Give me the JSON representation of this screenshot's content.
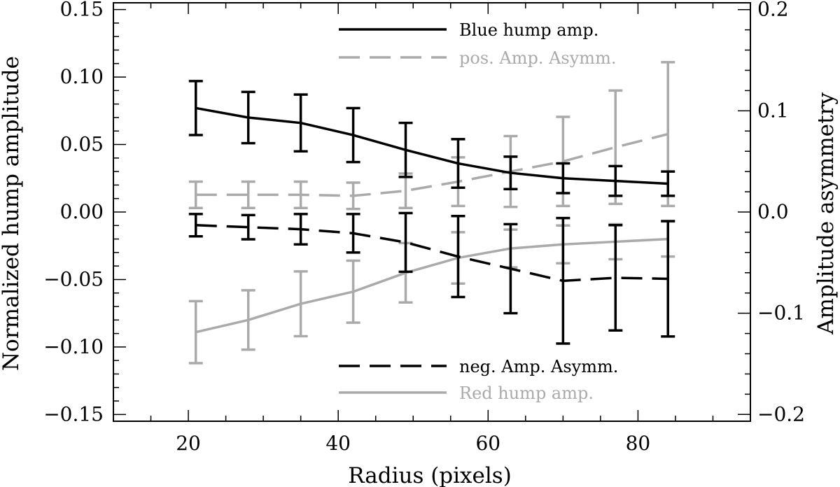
{
  "chart_data": {
    "type": "line",
    "xlabel": "Radius (pixels)",
    "ylabel_left": "Normalized hump amplitude",
    "ylabel_right": "Amplitude asymmetry",
    "xlim": [
      10,
      95
    ],
    "ylim_left": [
      -0.155,
      0.155
    ],
    "ylim_right": [
      -0.2067,
      0.2067
    ],
    "x_ticks": [
      20,
      40,
      60,
      80
    ],
    "x_tick_labels": [
      "20",
      "40",
      "60",
      "80"
    ],
    "y_left_ticks": [
      0.15,
      0.1,
      0.05,
      0.0,
      -0.05,
      -0.1,
      -0.15
    ],
    "y_left_tick_labels": [
      "0.15",
      "0.10",
      "0.05",
      "0.00",
      "−0.05",
      "−0.10",
      "−0.15"
    ],
    "y_right_ticks": [
      0.2,
      0.1,
      0.0,
      -0.1,
      -0.2
    ],
    "y_right_tick_labels": [
      "0.2",
      "0.1",
      "0.0",
      "−0.1",
      "−0.2"
    ],
    "x": [
      21,
      28,
      35,
      42,
      49,
      56,
      63,
      70,
      77,
      84
    ],
    "series": [
      {
        "name": "Blue hump amp.",
        "axis": "left",
        "color": "#000000",
        "dash": "solid",
        "values": [
          0.077,
          0.07,
          0.066,
          0.057,
          0.046,
          0.036,
          0.029,
          0.025,
          0.023,
          0.021
        ],
        "errors": [
          0.02,
          0.019,
          0.021,
          0.02,
          0.02,
          0.018,
          0.012,
          0.011,
          0.011,
          0.009
        ]
      },
      {
        "name": "pos. Amp. Asymm.",
        "axis": "right",
        "color": "#aaaaaa",
        "dash": "dashed",
        "values": [
          0.017,
          0.017,
          0.017,
          0.016,
          0.021,
          0.03,
          0.04,
          0.05,
          0.064,
          0.077
        ],
        "errors": [
          0.013,
          0.013,
          0.013,
          0.013,
          0.017,
          0.024,
          0.035,
          0.044,
          0.056,
          0.071
        ]
      },
      {
        "name": "neg. Amp. Asymm.",
        "axis": "right",
        "color": "#000000",
        "dash": "dashed",
        "values": [
          -0.013,
          -0.015,
          -0.017,
          -0.021,
          -0.03,
          -0.044,
          -0.056,
          -0.068,
          -0.065,
          -0.066
        ],
        "errors": [
          0.011,
          0.012,
          0.015,
          0.019,
          0.029,
          0.04,
          0.044,
          0.062,
          0.052,
          0.057
        ]
      },
      {
        "name": "Red hump amp.",
        "axis": "left",
        "color": "#aaaaaa",
        "dash": "solid",
        "values": [
          -0.089,
          -0.08,
          -0.068,
          -0.059,
          -0.045,
          -0.034,
          -0.027,
          -0.024,
          -0.022,
          -0.02
        ],
        "errors": [
          0.023,
          0.022,
          0.024,
          0.023,
          0.022,
          0.019,
          0.014,
          0.014,
          0.013,
          0.013
        ]
      }
    ],
    "legend_top": [
      "Blue hump amp.",
      "pos. Amp. Asymm."
    ],
    "legend_bottom": [
      "neg. Amp. Asymm.",
      "Red hump amp."
    ],
    "grid": false
  }
}
